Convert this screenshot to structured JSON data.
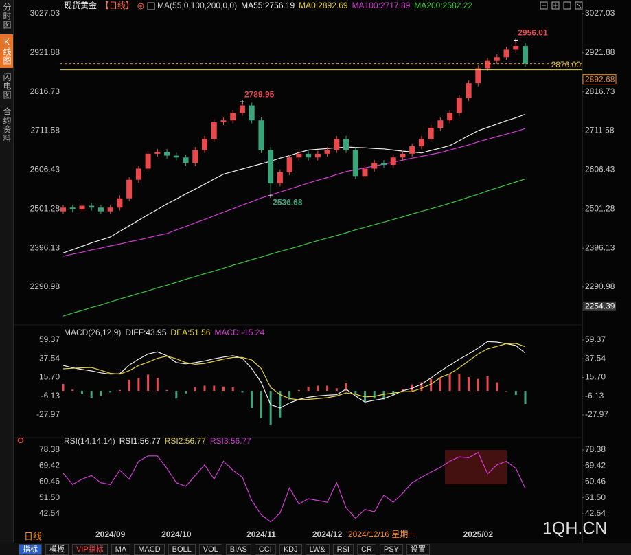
{
  "ui": {
    "sidebar": [
      "分时图",
      "K线图",
      "闪电图",
      "合约资料"
    ],
    "sidebar_active": 1,
    "period_tab": "日线",
    "watermark": "1QH.CN",
    "toolbar": [
      "指标",
      "模板",
      "VIP指标",
      "MA",
      "MACD",
      "BOLL",
      "VOL",
      "BIAS",
      "CCI",
      "KDJ",
      "LW&",
      "RSI",
      "CR",
      "PSY",
      "设置"
    ],
    "toolbar_active": 0,
    "toolbar_highlight": 2
  },
  "chart_data": [
    {
      "type": "candlestick",
      "title": "现货黄金",
      "period": "【日线】",
      "indicator": "MA(55,0,100,200,0,0)",
      "categories": [
        null,
        null,
        null,
        null,
        null,
        "2024/09",
        null,
        null,
        null,
        null,
        null,
        null,
        "2024/10",
        null,
        null,
        null,
        null,
        null,
        null,
        null,
        null,
        "2024/11",
        null,
        null,
        null,
        null,
        null,
        null,
        "2024/12",
        null,
        null,
        null,
        null,
        null,
        null,
        null,
        null,
        null,
        null,
        null,
        null,
        null,
        null,
        null,
        "2025/02",
        null,
        null,
        null,
        null,
        null
      ],
      "open": [
        2495,
        2505,
        2500,
        2510,
        2505,
        2495,
        2505,
        2530,
        2580,
        2610,
        2650,
        2655,
        2645,
        2640,
        2625,
        2660,
        2690,
        2735,
        2740,
        2760,
        2780,
        2740,
        2660,
        2570,
        2600,
        2640,
        2650,
        2640,
        2650,
        2660,
        2690,
        2660,
        2590,
        2610,
        2625,
        2620,
        2640,
        2650,
        2670,
        2690,
        2720,
        2740,
        2760,
        2800,
        2840,
        2880,
        2900,
        2910,
        2930,
        2940
      ],
      "high": [
        2513,
        2513,
        2518,
        2518,
        2513,
        2513,
        2538,
        2588,
        2618,
        2658,
        2663,
        2663,
        2653,
        2648,
        2668,
        2698,
        2743,
        2748,
        2768,
        2789.95,
        2788,
        2748,
        2668,
        2608,
        2648,
        2658,
        2658,
        2658,
        2668,
        2698,
        2698,
        2668,
        2618,
        2633,
        2633,
        2648,
        2658,
        2678,
        2698,
        2728,
        2748,
        2768,
        2808,
        2848,
        2888,
        2908,
        2918,
        2938,
        2956.01,
        2948
      ],
      "low": [
        2487,
        2492,
        2492,
        2497,
        2487,
        2487,
        2497,
        2522,
        2572,
        2602,
        2642,
        2637,
        2632,
        2617,
        2617,
        2652,
        2682,
        2727,
        2732,
        2752,
        2732,
        2652,
        2536.68,
        2562,
        2592,
        2632,
        2632,
        2632,
        2642,
        2652,
        2652,
        2582,
        2582,
        2602,
        2612,
        2612,
        2632,
        2642,
        2662,
        2682,
        2712,
        2732,
        2752,
        2792,
        2832,
        2872,
        2892,
        2902,
        2922,
        2884.68
      ],
      "close": [
        2505,
        2500,
        2510,
        2505,
        2495,
        2505,
        2530,
        2580,
        2610,
        2650,
        2655,
        2645,
        2640,
        2625,
        2660,
        2690,
        2735,
        2740,
        2760,
        2780,
        2740,
        2660,
        2570,
        2600,
        2640,
        2650,
        2640,
        2650,
        2660,
        2690,
        2660,
        2590,
        2610,
        2625,
        2620,
        2640,
        2650,
        2670,
        2690,
        2720,
        2740,
        2760,
        2800,
        2840,
        2880,
        2900,
        2910,
        2930,
        2940,
        2892.68
      ],
      "up_color": "#e8494c",
      "down_color": "#3aa57a",
      "series": [
        {
          "name": "MA55:2756.19",
          "color": "#f0f0f0",
          "values": [
            2383,
            2392,
            2401,
            2410,
            2418,
            2426,
            2441,
            2456,
            2471,
            2486,
            2500,
            2515,
            2528,
            2542,
            2555,
            2568,
            2582,
            2595,
            2602,
            2609,
            2616,
            2623,
            2630,
            2638,
            2645,
            2653,
            2660,
            2662,
            2664,
            2666,
            2668,
            2667,
            2666,
            2664,
            2663,
            2660,
            2657,
            2655,
            2652,
            2659,
            2665,
            2672,
            2685,
            2699,
            2712,
            2721,
            2730,
            2739,
            2747,
            2756.19
          ]
        },
        {
          "name": "MA0:2892.69",
          "color": "#e6d23c"
        },
        {
          "name": "MA100:2717.89",
          "color": "#d63cd6",
          "values": [
            2374,
            2380,
            2385,
            2391,
            2396,
            2402,
            2407,
            2413,
            2418,
            2424,
            2430,
            2435,
            2445,
            2454,
            2464,
            2473,
            2483,
            2493,
            2502,
            2512,
            2521,
            2531,
            2539,
            2547,
            2555,
            2563,
            2571,
            2579,
            2586,
            2594,
            2602,
            2607,
            2612,
            2617,
            2622,
            2627,
            2633,
            2638,
            2643,
            2648,
            2653,
            2660,
            2667,
            2674,
            2682,
            2689,
            2696,
            2703,
            2710,
            2717.89
          ]
        },
        {
          "name": "MA200:2582.22",
          "color": "#3cc83c",
          "values": [
            2213,
            2221,
            2228,
            2236,
            2243,
            2251,
            2259,
            2266,
            2274,
            2281,
            2289,
            2296,
            2304,
            2312,
            2319,
            2327,
            2334,
            2342,
            2350,
            2357,
            2365,
            2372,
            2380,
            2387,
            2394,
            2401,
            2409,
            2416,
            2423,
            2430,
            2437,
            2445,
            2452,
            2459,
            2466,
            2473,
            2480,
            2488,
            2495,
            2502,
            2509,
            2517,
            2525,
            2533,
            2541,
            2550,
            2558,
            2566,
            2574,
            2582.22
          ]
        }
      ],
      "ylim": [
        2194.8,
        3049.2
      ],
      "yticks": [
        3027.03,
        2921.88,
        2816.73,
        2711.58,
        2606.43,
        2501.28,
        2396.13,
        2290.98
      ],
      "price_lines": [
        {
          "value": 2876,
          "label": "2876.00",
          "color": "#e6d23c"
        }
      ],
      "last_price": {
        "value": 2892.68,
        "label": "2892.68",
        "color": "#f08a24"
      },
      "axis_markers": [
        {
          "value": 2254.39,
          "label": "2254.39"
        }
      ],
      "annotations": [
        {
          "value": 2956.01,
          "label": "2956.01",
          "color": "#e8494c"
        },
        {
          "value": 2789.95,
          "label": "2789.95",
          "color": "#e8494c"
        },
        {
          "value": 2536.68,
          "label": "2536.68",
          "color": "#3aa57a"
        }
      ]
    },
    {
      "type": "macd",
      "indicator": "MACD(26,12,9)",
      "up_color": "#e8494c",
      "down_color": "#3aa57a",
      "ylim": [
        -52.9,
        73.0
      ],
      "yticks": [
        59.37,
        37.54,
        {
          "value": 15.7,
          "label": "15.70"
        },
        -6.13,
        -27.97
      ],
      "series": [
        {
          "name": "DIFF:43.95",
          "color": "#f0f0f0",
          "values": [
            29.7,
            27,
            25,
            23.3,
            21,
            19.5,
            20,
            30,
            37,
            43,
            45.5,
            41,
            33,
            31.5,
            33,
            35,
            37.5,
            39.5,
            41,
            38,
            26,
            10,
            -16,
            -20,
            -14,
            -10,
            -7.5,
            -6,
            -5,
            -4.5,
            2,
            -6,
            -13,
            -11,
            -9,
            -5,
            0,
            3,
            8,
            15,
            23,
            30,
            37,
            43,
            50,
            57.5,
            57,
            55,
            53,
            43.95
          ]
        },
        {
          "name": "DEA:51.56",
          "color": "#e6d23c",
          "values": [
            25.7,
            26.3,
            26.9,
            27.3,
            24,
            20.5,
            19.5,
            23.5,
            29.5,
            33.5,
            38,
            40.5,
            37.5,
            33,
            31,
            32,
            34.5,
            37,
            39,
            39,
            36,
            26,
            4,
            -4.5,
            -9,
            -10.5,
            -10,
            -9,
            -8,
            -6,
            -2.4,
            -4,
            -7,
            -6.5,
            -4,
            -2.5,
            -1,
            -0.8,
            3,
            8,
            15.5,
            20,
            27,
            35,
            43,
            49,
            52,
            55,
            55.4,
            51.56
          ]
        },
        {
          "name": "MACD:-15.24",
          "color": "#d63cd6",
          "style": "histogram",
          "values": [
            8,
            1.4,
            -3.8,
            -8,
            -6,
            -2,
            1,
            13,
            15,
            19,
            15,
            1,
            -9,
            -3,
            4,
            6,
            6,
            5,
            4,
            -2,
            -20,
            -32,
            -40,
            -31,
            -10,
            1,
            5,
            6,
            6,
            3,
            8.8,
            -4,
            -12,
            -9,
            -10,
            -5,
            2,
            7.6,
            10,
            14,
            15,
            20,
            20,
            16,
            14,
            17,
            10,
            0,
            -4.8,
            -15.24
          ]
        }
      ]
    },
    {
      "type": "line",
      "indicator": "RSI(14,14,14)",
      "crosshair_label": "2024/12/16 星期一",
      "ylim": [
        34.04,
        81.08
      ],
      "yticks": [
        78.38,
        69.42,
        60.46,
        {
          "value": 51.5,
          "label": "51.50"
        },
        42.54
      ],
      "series": [
        {
          "name": "RSI1:56.77",
          "color": "#f0f0f0"
        },
        {
          "name": "RSI2:56.77",
          "color": "#e6d23c"
        },
        {
          "name": "RSI3:56.77",
          "color": "#d63cd6",
          "values": [
            65.3,
            59,
            62,
            64,
            60,
            59,
            67,
            62,
            72,
            75,
            75,
            68,
            60,
            58,
            64,
            70,
            62,
            72,
            67,
            63,
            50,
            42,
            38,
            43,
            57,
            48,
            51,
            50,
            49,
            60,
            46,
            40,
            45,
            43.6,
            53,
            49,
            54,
            60,
            63,
            66,
            68.6,
            72,
            74.5,
            74,
            77,
            65,
            70,
            72,
            68,
            56.77
          ]
        }
      ]
    }
  ]
}
